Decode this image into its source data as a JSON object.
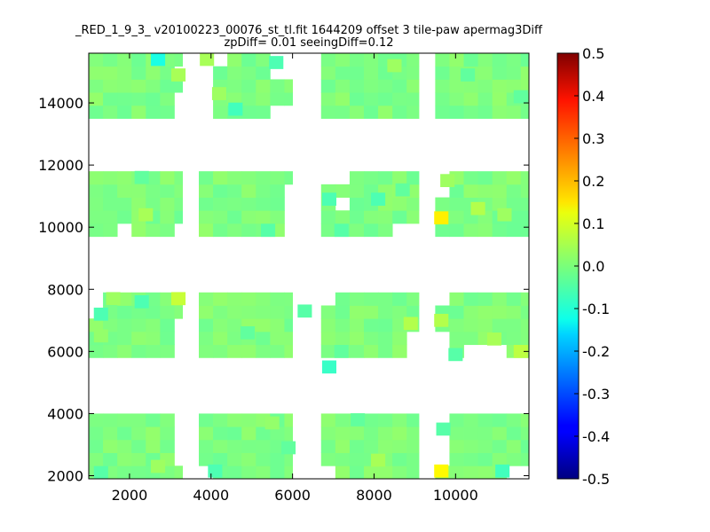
{
  "chart_data": {
    "type": "heatmap",
    "title": "_RED_1_9_3_ v20100223_00076_st_tl.fit 1644209 offset 3 tile-paw apermag3Diff",
    "subtitle": "zpDiff= 0.01 seeingDiff=0.12",
    "xlabel": "",
    "ylabel": "",
    "xlim": [
      1000,
      11800
    ],
    "ylim": [
      1900,
      15600
    ],
    "xticks": [
      2000,
      4000,
      6000,
      8000,
      10000
    ],
    "yticks": [
      2000,
      4000,
      6000,
      8000,
      10000,
      12000,
      14000
    ],
    "colorbar": {
      "colormap": "jet",
      "range": [
        -0.5,
        0.5
      ],
      "ticks": [
        "0.5",
        "0.4",
        "0.3",
        "0.2",
        "0.1",
        "0.0",
        "-0.1",
        "-0.2",
        "-0.3",
        "-0.4",
        "-0.5"
      ]
    },
    "cell_size": [
      350,
      420
    ],
    "default_value": 0.0,
    "tile_columns": [
      {
        "x": [
          1000,
          3300
        ]
      },
      {
        "x": [
          3700,
          6000
        ]
      },
      {
        "x": [
          6700,
          9100
        ]
      },
      {
        "x": [
          9500,
          11800
        ]
      }
    ],
    "tile_rows": [
      {
        "y": [
          1900,
          4000
        ]
      },
      {
        "y": [
          5800,
          7900
        ]
      },
      {
        "y": [
          9700,
          11800
        ]
      },
      {
        "y": [
          13500,
          15600
        ]
      }
    ],
    "hot_cells": [
      {
        "x": 9650,
        "y": 10300,
        "value": 0.14
      },
      {
        "x": 9650,
        "y": 2150,
        "value": 0.13
      },
      {
        "x": 3200,
        "y": 7700,
        "value": 0.07
      },
      {
        "x": 11600,
        "y": 6000,
        "value": 0.06
      },
      {
        "x": 8900,
        "y": 6900,
        "value": 0.05
      },
      {
        "x": 9650,
        "y": 7000,
        "value": 0.05
      },
      {
        "x": 10550,
        "y": 10600,
        "value": 0.05
      },
      {
        "x": 10950,
        "y": 6400,
        "value": 0.04
      },
      {
        "x": 2400,
        "y": 10400,
        "value": 0.04
      },
      {
        "x": 8100,
        "y": 2500,
        "value": 0.04
      },
      {
        "x": 3200,
        "y": 14900,
        "value": 0.04
      },
      {
        "x": 3900,
        "y": 15400,
        "value": 0.04
      },
      {
        "x": 4200,
        "y": 14300,
        "value": 0.03
      },
      {
        "x": 9800,
        "y": 11500,
        "value": 0.03
      },
      {
        "x": 11200,
        "y": 10400,
        "value": 0.03
      },
      {
        "x": 1600,
        "y": 7700,
        "value": 0.03
      },
      {
        "x": 2700,
        "y": 2300,
        "value": 0.03
      },
      {
        "x": 8500,
        "y": 15200,
        "value": 0.03
      },
      {
        "x": 5500,
        "y": 3700,
        "value": 0.02
      },
      {
        "x": 1300,
        "y": 6500,
        "value": 0.02
      }
    ],
    "cold_cells": [
      {
        "x": 2700,
        "y": 15400,
        "value": -0.1
      },
      {
        "x": 6900,
        "y": 5500,
        "value": -0.07
      },
      {
        "x": 4600,
        "y": 13800,
        "value": -0.06
      },
      {
        "x": 11150,
        "y": 2150,
        "value": -0.06
      },
      {
        "x": 5600,
        "y": 15300,
        "value": -0.05
      },
      {
        "x": 2300,
        "y": 7600,
        "value": -0.05
      },
      {
        "x": 1300,
        "y": 7200,
        "value": -0.05
      },
      {
        "x": 4100,
        "y": 2150,
        "value": -0.05
      },
      {
        "x": 6900,
        "y": 10900,
        "value": -0.05
      },
      {
        "x": 8100,
        "y": 10900,
        "value": -0.05
      },
      {
        "x": 10000,
        "y": 5900,
        "value": -0.04
      },
      {
        "x": 5400,
        "y": 9900,
        "value": -0.04
      },
      {
        "x": 6300,
        "y": 7300,
        "value": -0.04
      },
      {
        "x": 7200,
        "y": 9900,
        "value": -0.04
      },
      {
        "x": 9700,
        "y": 3500,
        "value": -0.04
      },
      {
        "x": 1300,
        "y": 2100,
        "value": -0.04
      },
      {
        "x": 11600,
        "y": 14200,
        "value": -0.03
      },
      {
        "x": 10300,
        "y": 14900,
        "value": -0.03
      },
      {
        "x": 2300,
        "y": 11600,
        "value": -0.03
      },
      {
        "x": 7600,
        "y": 3800,
        "value": -0.03
      },
      {
        "x": 5900,
        "y": 2900,
        "value": -0.03
      },
      {
        "x": 8700,
        "y": 11200,
        "value": -0.03
      },
      {
        "x": 7200,
        "y": 6000,
        "value": -0.03
      },
      {
        "x": 4900,
        "y": 6600,
        "value": -0.03
      }
    ],
    "missing_cells": [
      {
        "x": [
          3000,
          3300
        ],
        "y": [
          13500,
          14300
        ]
      },
      {
        "x": [
          3000,
          3300
        ],
        "y": [
          14700,
          15200
        ]
      },
      {
        "x": [
          3700,
          4200
        ],
        "y": [
          13500,
          15600
        ]
      },
      {
        "x": [
          4200,
          4500
        ],
        "y": [
          15300,
          15600
        ]
      },
      {
        "x": [
          5600,
          6000
        ],
        "y": [
          13500,
          14000
        ]
      },
      {
        "x": [
          5600,
          6000
        ],
        "y": [
          14800,
          15600
        ]
      },
      {
        "x": [
          5300,
          6000
        ],
        "y": [
          11600,
          11800
        ]
      },
      {
        "x": [
          5800,
          6000
        ],
        "y": [
          9700,
          11300
        ]
      },
      {
        "x": [
          1000,
          1700
        ],
        "y": [
          11600,
          11800
        ]
      },
      {
        "x": [
          1000,
          1400
        ],
        "y": [
          9700,
          9900
        ]
      },
      {
        "x": [
          1600,
          2000
        ],
        "y": [
          9700,
          10000
        ]
      },
      {
        "x": [
          3000,
          3300
        ],
        "y": [
          9700,
          10100
        ]
      },
      {
        "x": [
          6700,
          7400
        ],
        "y": [
          11500,
          11800
        ]
      },
      {
        "x": [
          7100,
          7400
        ],
        "y": [
          10600,
          11000
        ]
      },
      {
        "x": [
          9000,
          9100
        ],
        "y": [
          9700,
          11800
        ]
      },
      {
        "x": [
          8600,
          9100
        ],
        "y": [
          9700,
          10300
        ]
      },
      {
        "x": [
          9500,
          9800
        ],
        "y": [
          10900,
          11400
        ]
      },
      {
        "x": [
          9500,
          10000
        ],
        "y": [
          11500,
          11800
        ]
      },
      {
        "x": [
          1000,
          1400
        ],
        "y": [
          7200,
          7900
        ]
      },
      {
        "x": [
          3000,
          3300
        ],
        "y": [
          5800,
          6900
        ]
      },
      {
        "x": [
          3700,
          4000
        ],
        "y": [
          5800,
          6000
        ]
      },
      {
        "x": [
          4400,
          6000
        ],
        "y": [
          5800,
          6000
        ]
      },
      {
        "x": [
          6700,
          6900
        ],
        "y": [
          7600,
          7900
        ]
      },
      {
        "x": [
          8700,
          9100
        ],
        "y": [
          5800,
          6600
        ]
      },
      {
        "x": [
          9500,
          9800
        ],
        "y": [
          5800,
          6700
        ]
      },
      {
        "x": [
          9500,
          9800
        ],
        "y": [
          7300,
          7900
        ]
      },
      {
        "x": [
          10200,
          10400
        ],
        "y": [
          5800,
          6100
        ]
      },
      {
        "x": [
          10700,
          11400
        ],
        "y": [
          5800,
          6200
        ]
      },
      {
        "x": [
          11400,
          11800
        ],
        "y": [
          6500,
          6700
        ]
      },
      {
        "x": [
          3000,
          3300
        ],
        "y": [
          2400,
          4000
        ]
      },
      {
        "x": [
          3700,
          4000
        ],
        "y": [
          1900,
          2200
        ]
      },
      {
        "x": [
          6700,
          6900
        ],
        "y": [
          1900,
          2200
        ]
      },
      {
        "x": [
          9000,
          9100
        ],
        "y": [
          1900,
          4000
        ]
      },
      {
        "x": [
          9500,
          9800
        ],
        "y": [
          2400,
          4000
        ]
      },
      {
        "x": [
          9800,
          10100
        ],
        "y": [
          3800,
          4000
        ]
      },
      {
        "x": [
          11400,
          11800
        ],
        "y": [
          1900,
          2200
        ]
      }
    ]
  }
}
